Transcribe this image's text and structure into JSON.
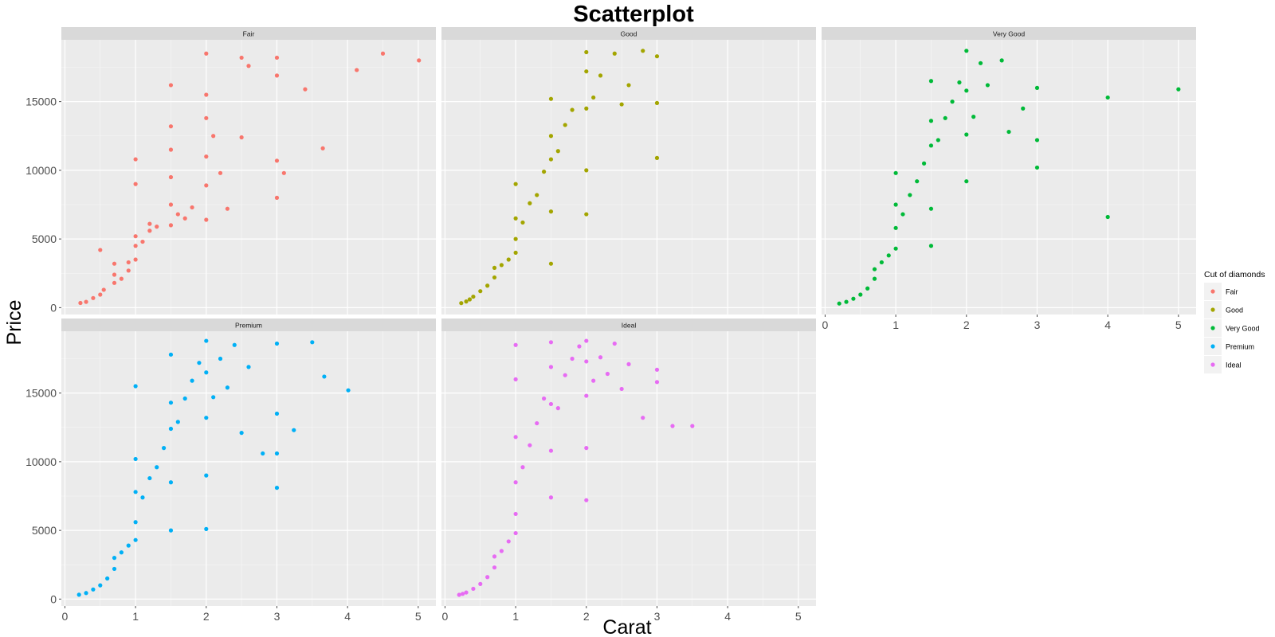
{
  "chart_data": {
    "type": "scatter",
    "title": "Scatterplot",
    "xlabel": "Carat",
    "ylabel": "Price",
    "xlim": [
      -0.05,
      5.25
    ],
    "ylim": [
      -500,
      19500
    ],
    "x_ticks": [
      0,
      1,
      2,
      3,
      4,
      5
    ],
    "y_ticks": [
      0,
      5000,
      10000,
      15000
    ],
    "grid": true,
    "legend": {
      "title": "Cut of diamonds",
      "position": "right",
      "entries": [
        "Fair",
        "Good",
        "Very Good",
        "Premium",
        "Ideal"
      ]
    },
    "facets": [
      {
        "name": "Fair",
        "color": "#F8766D",
        "points": [
          [
            0.22,
            340
          ],
          [
            0.3,
            420
          ],
          [
            0.4,
            700
          ],
          [
            0.5,
            950
          ],
          [
            0.5,
            4200
          ],
          [
            0.55,
            1300
          ],
          [
            0.7,
            1800
          ],
          [
            0.7,
            2400
          ],
          [
            0.7,
            3200
          ],
          [
            0.8,
            2100
          ],
          [
            0.9,
            2700
          ],
          [
            0.9,
            3300
          ],
          [
            1.0,
            3500
          ],
          [
            1.0,
            4500
          ],
          [
            1.0,
            5200
          ],
          [
            1.0,
            9000
          ],
          [
            1.0,
            10800
          ],
          [
            1.1,
            4800
          ],
          [
            1.2,
            5600
          ],
          [
            1.2,
            6100
          ],
          [
            1.3,
            5900
          ],
          [
            1.5,
            6000
          ],
          [
            1.5,
            7500
          ],
          [
            1.5,
            9500
          ],
          [
            1.5,
            11500
          ],
          [
            1.5,
            13200
          ],
          [
            1.5,
            16200
          ],
          [
            1.6,
            6800
          ],
          [
            1.7,
            6500
          ],
          [
            1.8,
            7300
          ],
          [
            2.0,
            6400
          ],
          [
            2.0,
            8900
          ],
          [
            2.0,
            11000
          ],
          [
            2.0,
            13800
          ],
          [
            2.0,
            15500
          ],
          [
            2.0,
            18500
          ],
          [
            2.1,
            12500
          ],
          [
            2.2,
            9800
          ],
          [
            2.3,
            7200
          ],
          [
            2.5,
            12400
          ],
          [
            2.5,
            18200
          ],
          [
            2.6,
            17600
          ],
          [
            3.0,
            8000
          ],
          [
            3.0,
            10700
          ],
          [
            3.0,
            16900
          ],
          [
            3.0,
            18200
          ],
          [
            3.1,
            9800
          ],
          [
            3.4,
            15900
          ],
          [
            3.65,
            11600
          ],
          [
            4.13,
            17300
          ],
          [
            4.5,
            18500
          ],
          [
            5.01,
            18000
          ]
        ]
      },
      {
        "name": "Good",
        "color": "#A3A500",
        "points": [
          [
            0.23,
            330
          ],
          [
            0.3,
            450
          ],
          [
            0.35,
            600
          ],
          [
            0.4,
            800
          ],
          [
            0.5,
            1200
          ],
          [
            0.6,
            1600
          ],
          [
            0.7,
            2200
          ],
          [
            0.7,
            2900
          ],
          [
            0.8,
            3100
          ],
          [
            0.9,
            3500
          ],
          [
            1.0,
            4000
          ],
          [
            1.0,
            5000
          ],
          [
            1.0,
            6500
          ],
          [
            1.0,
            9000
          ],
          [
            1.1,
            6200
          ],
          [
            1.2,
            7600
          ],
          [
            1.3,
            8200
          ],
          [
            1.4,
            9900
          ],
          [
            1.5,
            3200
          ],
          [
            1.5,
            7000
          ],
          [
            1.5,
            10800
          ],
          [
            1.5,
            12500
          ],
          [
            1.5,
            15200
          ],
          [
            1.6,
            11400
          ],
          [
            1.7,
            13300
          ],
          [
            1.8,
            14400
          ],
          [
            2.0,
            6800
          ],
          [
            2.0,
            10000
          ],
          [
            2.0,
            14500
          ],
          [
            2.0,
            17200
          ],
          [
            2.0,
            18600
          ],
          [
            2.1,
            15300
          ],
          [
            2.2,
            16900
          ],
          [
            2.4,
            18500
          ],
          [
            2.5,
            14800
          ],
          [
            2.6,
            16200
          ],
          [
            2.8,
            18700
          ],
          [
            3.0,
            10900
          ],
          [
            3.0,
            14900
          ],
          [
            3.0,
            18300
          ]
        ]
      },
      {
        "name": "Very Good",
        "color": "#00BA38",
        "points": [
          [
            0.2,
            300
          ],
          [
            0.3,
            420
          ],
          [
            0.4,
            650
          ],
          [
            0.5,
            950
          ],
          [
            0.6,
            1400
          ],
          [
            0.7,
            2100
          ],
          [
            0.7,
            2800
          ],
          [
            0.8,
            3300
          ],
          [
            0.9,
            3800
          ],
          [
            1.0,
            4300
          ],
          [
            1.0,
            5800
          ],
          [
            1.0,
            7500
          ],
          [
            1.0,
            9800
          ],
          [
            1.1,
            6800
          ],
          [
            1.2,
            8200
          ],
          [
            1.3,
            9200
          ],
          [
            1.4,
            10500
          ],
          [
            1.5,
            4500
          ],
          [
            1.5,
            7200
          ],
          [
            1.5,
            11800
          ],
          [
            1.5,
            13600
          ],
          [
            1.5,
            16500
          ],
          [
            1.6,
            12200
          ],
          [
            1.7,
            13800
          ],
          [
            1.8,
            15000
          ],
          [
            1.9,
            16400
          ],
          [
            2.0,
            9200
          ],
          [
            2.0,
            12600
          ],
          [
            2.0,
            15800
          ],
          [
            2.0,
            18700
          ],
          [
            2.1,
            13900
          ],
          [
            2.2,
            17800
          ],
          [
            2.3,
            16200
          ],
          [
            2.5,
            18000
          ],
          [
            2.6,
            12800
          ],
          [
            2.8,
            14500
          ],
          [
            3.0,
            12200
          ],
          [
            3.0,
            10200
          ],
          [
            3.0,
            16000
          ],
          [
            4.0,
            6600
          ],
          [
            4.0,
            15300
          ],
          [
            5.0,
            15900
          ]
        ]
      },
      {
        "name": "Premium",
        "color": "#00B0F6",
        "points": [
          [
            0.2,
            320
          ],
          [
            0.3,
            440
          ],
          [
            0.4,
            700
          ],
          [
            0.5,
            1000
          ],
          [
            0.6,
            1500
          ],
          [
            0.7,
            2200
          ],
          [
            0.7,
            3000
          ],
          [
            0.8,
            3400
          ],
          [
            0.9,
            3900
          ],
          [
            1.0,
            4300
          ],
          [
            1.0,
            5600
          ],
          [
            1.0,
            7800
          ],
          [
            1.0,
            10200
          ],
          [
            1.0,
            15500
          ],
          [
            1.1,
            7400
          ],
          [
            1.2,
            8800
          ],
          [
            1.3,
            9600
          ],
          [
            1.4,
            11000
          ],
          [
            1.5,
            5000
          ],
          [
            1.5,
            8500
          ],
          [
            1.5,
            12400
          ],
          [
            1.5,
            14300
          ],
          [
            1.5,
            17800
          ],
          [
            1.6,
            12900
          ],
          [
            1.7,
            14600
          ],
          [
            1.8,
            15900
          ],
          [
            1.9,
            17200
          ],
          [
            2.0,
            5100
          ],
          [
            2.0,
            9000
          ],
          [
            2.0,
            13200
          ],
          [
            2.0,
            16500
          ],
          [
            2.0,
            18800
          ],
          [
            2.1,
            14700
          ],
          [
            2.2,
            17500
          ],
          [
            2.3,
            15400
          ],
          [
            2.4,
            18500
          ],
          [
            2.5,
            12100
          ],
          [
            2.6,
            16900
          ],
          [
            2.8,
            10600
          ],
          [
            3.0,
            8100
          ],
          [
            3.0,
            10600
          ],
          [
            3.0,
            13500
          ],
          [
            3.0,
            18600
          ],
          [
            3.24,
            12300
          ],
          [
            3.5,
            18700
          ],
          [
            3.67,
            16200
          ],
          [
            4.01,
            15200
          ]
        ]
      },
      {
        "name": "Ideal",
        "color": "#E76BF3",
        "points": [
          [
            0.2,
            310
          ],
          [
            0.25,
            380
          ],
          [
            0.3,
            480
          ],
          [
            0.4,
            750
          ],
          [
            0.5,
            1100
          ],
          [
            0.6,
            1600
          ],
          [
            0.7,
            2300
          ],
          [
            0.7,
            3100
          ],
          [
            0.8,
            3500
          ],
          [
            0.9,
            4200
          ],
          [
            1.0,
            4800
          ],
          [
            1.0,
            6200
          ],
          [
            1.0,
            8500
          ],
          [
            1.0,
            11800
          ],
          [
            1.0,
            16000
          ],
          [
            1.0,
            18500
          ],
          [
            1.1,
            9600
          ],
          [
            1.2,
            11200
          ],
          [
            1.3,
            12800
          ],
          [
            1.4,
            14600
          ],
          [
            1.5,
            7400
          ],
          [
            1.5,
            10800
          ],
          [
            1.5,
            14200
          ],
          [
            1.5,
            16900
          ],
          [
            1.5,
            18700
          ],
          [
            1.6,
            13900
          ],
          [
            1.7,
            16300
          ],
          [
            1.8,
            17500
          ],
          [
            1.9,
            18400
          ],
          [
            2.0,
            7200
          ],
          [
            2.0,
            11000
          ],
          [
            2.0,
            14800
          ],
          [
            2.0,
            17300
          ],
          [
            2.0,
            18800
          ],
          [
            2.1,
            15900
          ],
          [
            2.2,
            17600
          ],
          [
            2.3,
            16400
          ],
          [
            2.4,
            18600
          ],
          [
            2.5,
            15300
          ],
          [
            2.6,
            17100
          ],
          [
            2.8,
            13200
          ],
          [
            3.0,
            15800
          ],
          [
            3.0,
            16700
          ],
          [
            3.22,
            12600
          ],
          [
            3.5,
            12600
          ]
        ]
      }
    ]
  }
}
